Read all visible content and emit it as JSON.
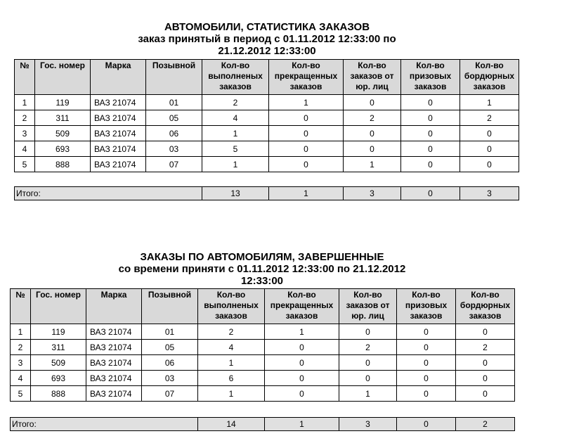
{
  "headers": [
    "№",
    "Гос. номер",
    "Марка",
    "Позывной",
    "Кол-во выполненых заказов",
    "Кол-во прекращенных заказов",
    "Кол-во заказов от юр. лиц",
    "Кол-во призовых заказов",
    "Кол-во бордюрных заказов"
  ],
  "total_label": "Итого:",
  "reports": [
    {
      "title": "АВТОМОБИЛИ, СТАТИСТИКА ЗАКАЗОВ",
      "subtitle": "заказ принятый в период с 01.11.2012 12:33:00 по",
      "subtitle2": "21.12.2012 12:33:00",
      "rows": [
        [
          "1",
          "119",
          "ВАЗ 21074",
          "01",
          "2",
          "1",
          "0",
          "0",
          "1"
        ],
        [
          "2",
          "311",
          "ВАЗ 21074",
          "05",
          "4",
          "0",
          "2",
          "0",
          "2"
        ],
        [
          "3",
          "509",
          "ВАЗ 21074",
          "06",
          "1",
          "0",
          "0",
          "0",
          "0"
        ],
        [
          "4",
          "693",
          "ВАЗ 21074",
          "03",
          "5",
          "0",
          "0",
          "0",
          "0"
        ],
        [
          "5",
          "888",
          "ВАЗ 21074",
          "07",
          "1",
          "0",
          "1",
          "0",
          "0"
        ]
      ],
      "totals": [
        "13",
        "1",
        "3",
        "0",
        "3"
      ]
    },
    {
      "title": "ЗАКАЗЫ ПО АВТОМОБИЛЯМ, ЗАВЕРШЕННЫЕ",
      "subtitle": "со времени приняти с 01.11.2012 12:33:00 по 21.12.2012",
      "subtitle2": "12:33:00",
      "rows": [
        [
          "1",
          "119",
          "ВАЗ 21074",
          "01",
          "2",
          "1",
          "0",
          "0",
          "0"
        ],
        [
          "2",
          "311",
          "ВАЗ 21074",
          "05",
          "4",
          "0",
          "2",
          "0",
          "2"
        ],
        [
          "3",
          "509",
          "ВАЗ 21074",
          "06",
          "1",
          "0",
          "0",
          "0",
          "0"
        ],
        [
          "4",
          "693",
          "ВАЗ 21074",
          "03",
          "6",
          "0",
          "0",
          "0",
          "0"
        ],
        [
          "5",
          "888",
          "ВАЗ 21074",
          "07",
          "1",
          "0",
          "1",
          "0",
          "0"
        ]
      ],
      "totals": [
        "14",
        "1",
        "3",
        "0",
        "2"
      ]
    }
  ]
}
